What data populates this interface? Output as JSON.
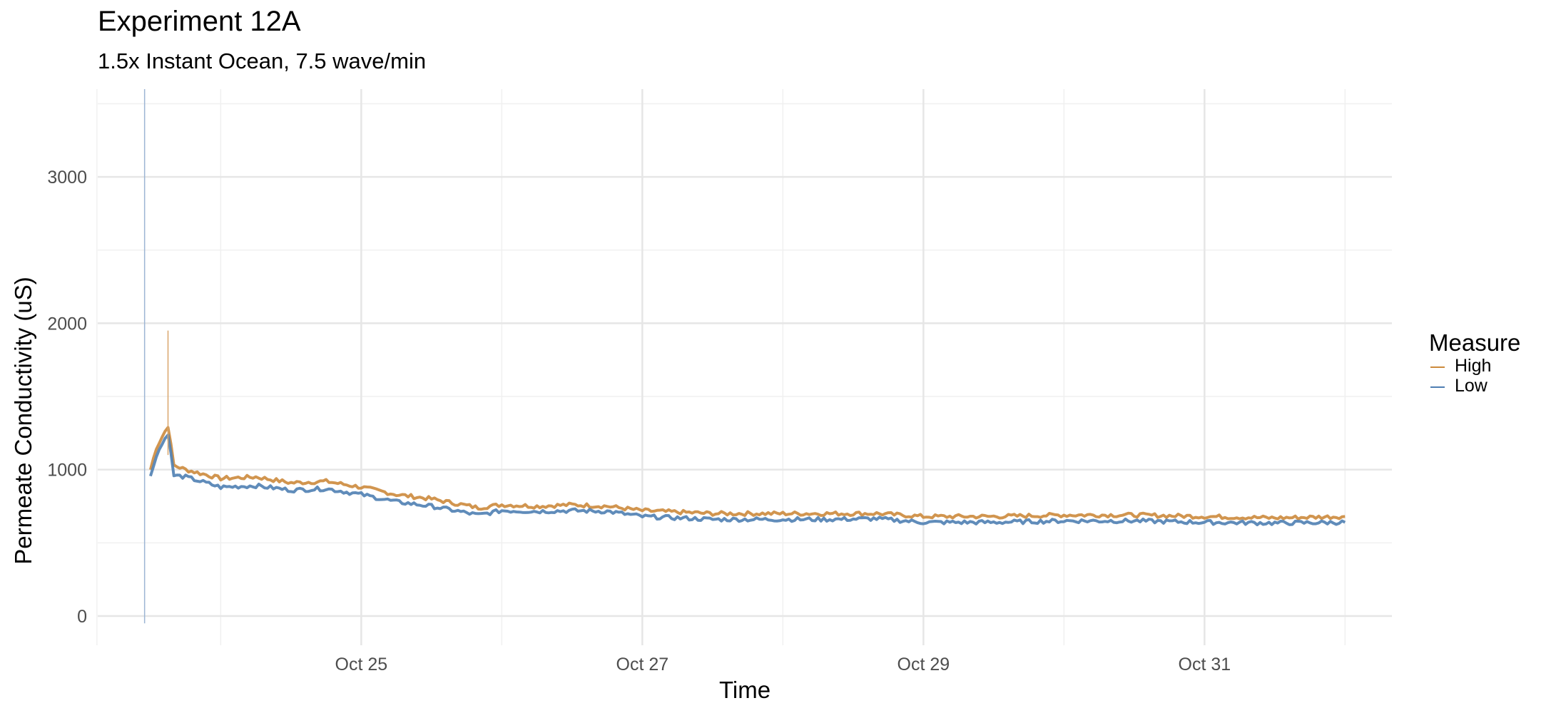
{
  "chart_data": {
    "type": "line",
    "title": "Experiment 12A",
    "subtitle": "1.5x Instant Ocean, 7.5 wave/min",
    "xlabel": "Time",
    "ylabel": "Permeate Conductivity (uS)",
    "x_tick_labels": [
      "Oct 25",
      "Oct 27",
      "Oct 29",
      "Oct 31"
    ],
    "y_ticks": [
      0,
      1000,
      2000,
      3000
    ],
    "y_tick_labels": [
      "0",
      "1000",
      "2000",
      "3000"
    ],
    "ylim": [
      -200,
      3600
    ],
    "xlim": [
      "Oct 23 03:00",
      "Nov 1 08:00"
    ],
    "grid": true,
    "legend": {
      "title": "Measure",
      "position": "right"
    },
    "series": [
      {
        "name": "High",
        "color": "#cc8a3c",
        "x": [
          "Oct 23 12:00",
          "Oct 23 13:00",
          "Oct 23 15:00",
          "Oct 23 16:00",
          "Oct 23 18:00",
          "Oct 24 00:00",
          "Oct 24 06:00",
          "Oct 24 12:00",
          "Oct 24 18:00",
          "Oct 25 00:00",
          "Oct 25 06:00",
          "Oct 25 12:00",
          "Oct 25 16:00",
          "Oct 25 20:00",
          "Oct 26 00:00",
          "Oct 26 06:00",
          "Oct 26 12:00",
          "Oct 26 18:00",
          "Oct 27 00:00",
          "Oct 27 12:00",
          "Oct 28 00:00",
          "Oct 28 08:00",
          "Oct 28 16:00",
          "Oct 29 00:00",
          "Oct 29 12:00",
          "Oct 30 00:00",
          "Oct 30 12:00",
          "Oct 31 00:00",
          "Oct 31 12:00",
          "Nov 1 00:00"
        ],
        "values": [
          1000,
          1150,
          1300,
          1030,
          1000,
          940,
          950,
          910,
          920,
          880,
          830,
          800,
          770,
          740,
          760,
          750,
          760,
          750,
          720,
          700,
          700,
          700,
          700,
          680,
          680,
          690,
          690,
          680,
          670,
          680
        ]
      },
      {
        "name": "Low",
        "color": "#4f7fb3",
        "x": [
          "Oct 23 12:00",
          "Oct 23 13:00",
          "Oct 23 15:00",
          "Oct 23 16:00",
          "Oct 23 18:00",
          "Oct 24 00:00",
          "Oct 24 06:00",
          "Oct 24 12:00",
          "Oct 24 18:00",
          "Oct 25 00:00",
          "Oct 25 06:00",
          "Oct 25 12:00",
          "Oct 25 16:00",
          "Oct 25 20:00",
          "Oct 26 00:00",
          "Oct 26 06:00",
          "Oct 26 12:00",
          "Oct 26 18:00",
          "Oct 27 00:00",
          "Oct 27 12:00",
          "Oct 28 00:00",
          "Oct 28 08:00",
          "Oct 28 16:00",
          "Oct 29 00:00",
          "Oct 29 12:00",
          "Oct 30 00:00",
          "Oct 30 12:00",
          "Oct 31 00:00",
          "Oct 31 12:00",
          "Nov 1 00:00"
        ],
        "values": [
          950,
          1100,
          1250,
          960,
          950,
          880,
          890,
          860,
          870,
          830,
          780,
          750,
          720,
          690,
          720,
          715,
          720,
          715,
          680,
          660,
          660,
          660,
          665,
          640,
          640,
          650,
          650,
          640,
          635,
          640
        ]
      }
    ]
  }
}
